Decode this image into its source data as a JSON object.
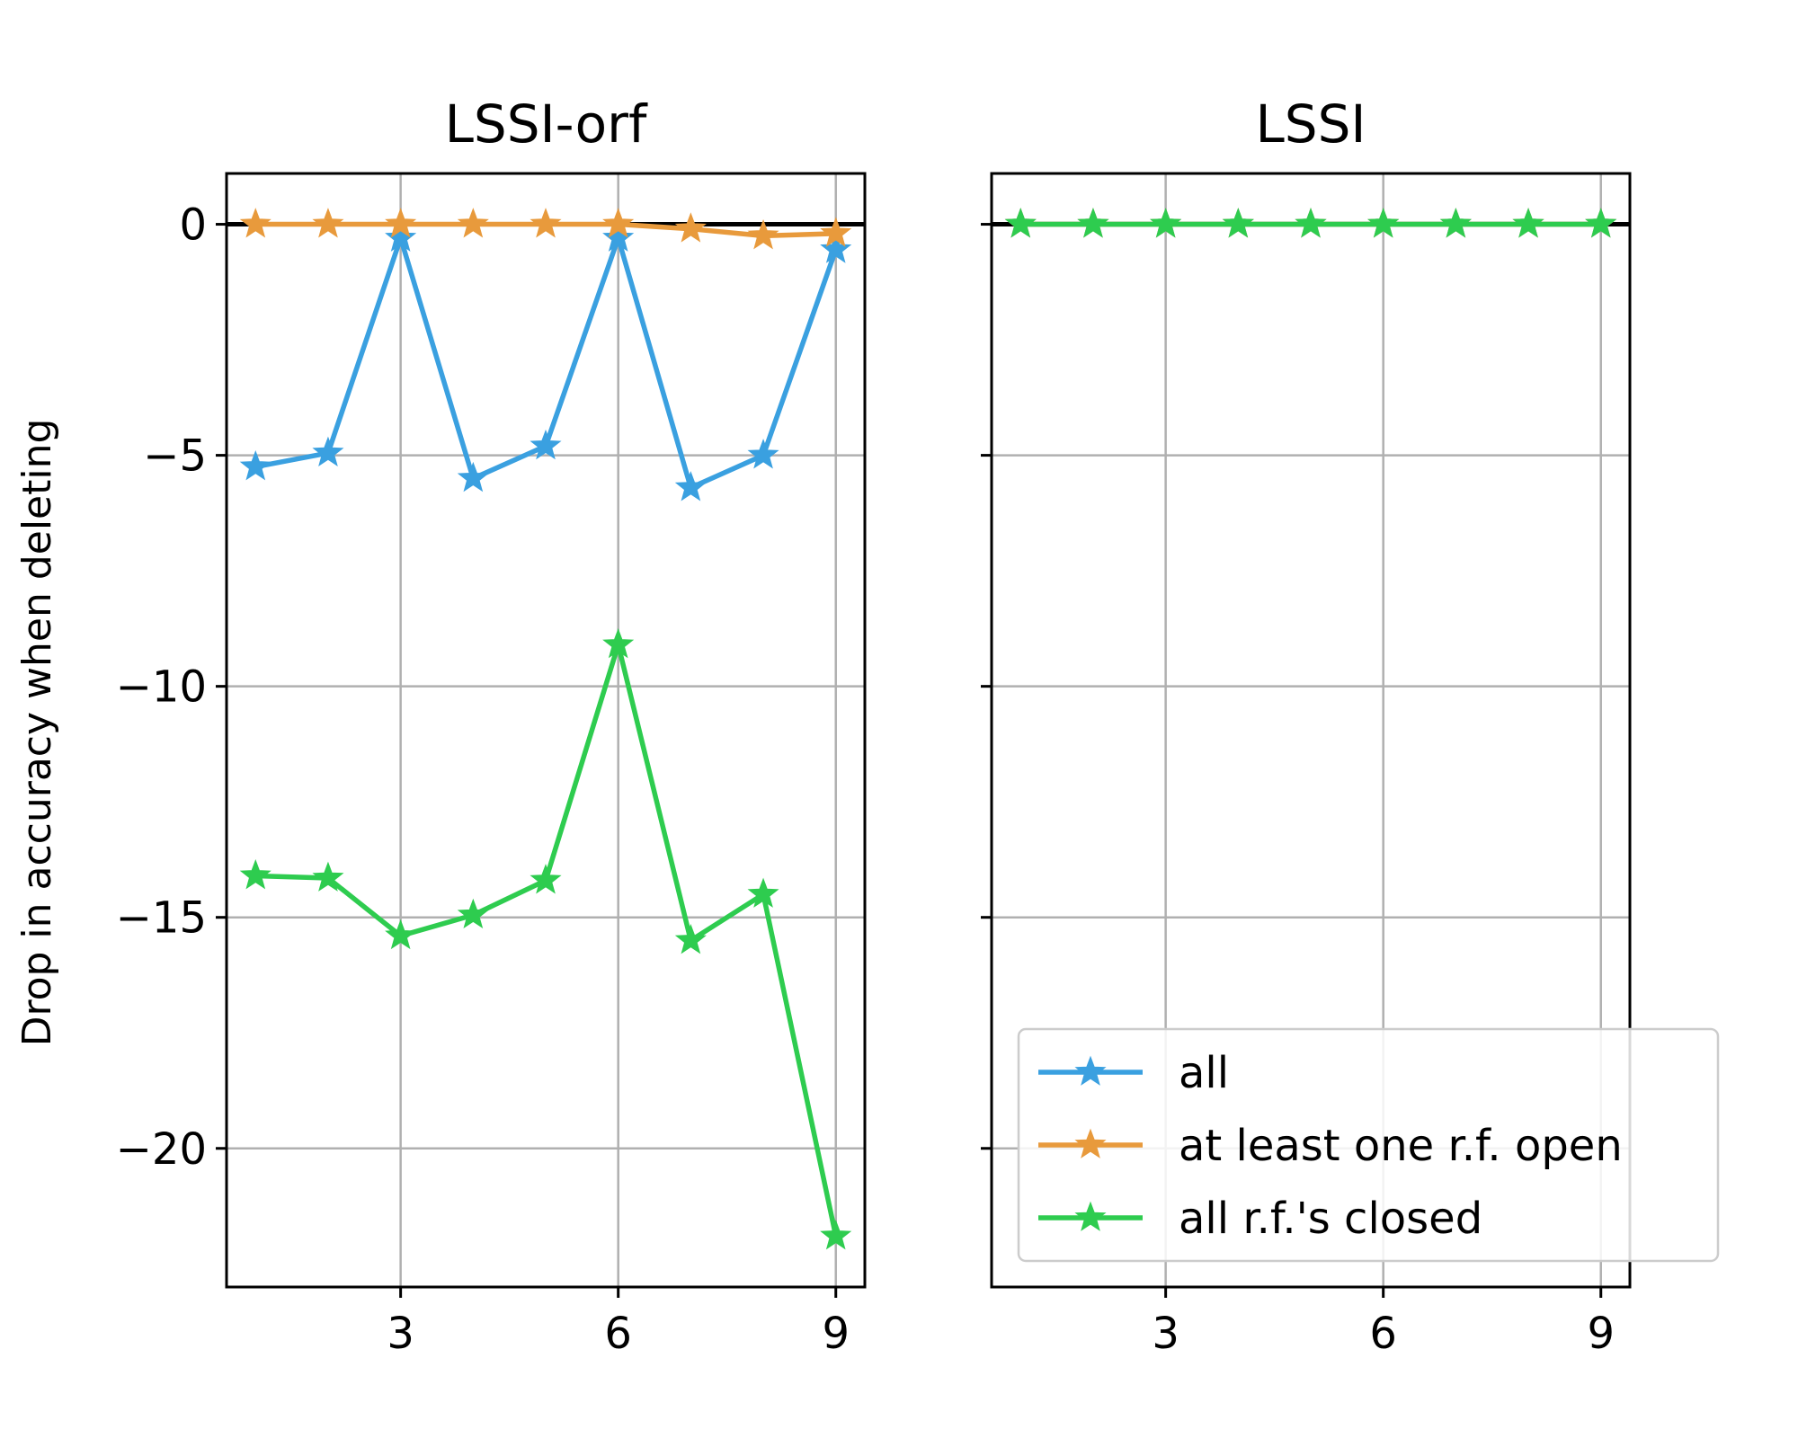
{
  "ylabel": "Drop in accuracy when deleting",
  "colors": {
    "all": "#3aa0e0",
    "open": "#e89a3c",
    "closed": "#2ecc4f"
  },
  "chart_data": [
    {
      "type": "line",
      "title": "LSSI-orf",
      "xlabel": "",
      "ylabel": "Drop in accuracy when deleting",
      "x": [
        1,
        2,
        3,
        4,
        5,
        6,
        7,
        8,
        9
      ],
      "xticks": [
        "3",
        "6",
        "9"
      ],
      "yticks": [
        "0",
        "−5",
        "−10",
        "−15",
        "−20"
      ],
      "xlim": [
        0.6,
        9.4
      ],
      "ylim": [
        -23.0,
        1.1
      ],
      "grid": true,
      "reference_line_y": 0,
      "series": [
        {
          "name": "all",
          "color": "#3aa0e0",
          "values": [
            -5.25,
            -4.95,
            -0.3,
            -5.5,
            -4.8,
            -0.3,
            -5.7,
            -5.0,
            -0.55
          ]
        },
        {
          "name": "at least one r.f. open",
          "color": "#e89a3c",
          "values": [
            0.0,
            0.0,
            0.0,
            0.0,
            0.0,
            0.0,
            -0.1,
            -0.25,
            -0.2
          ]
        },
        {
          "name": "all r.f.'s closed",
          "color": "#2ecc4f",
          "values": [
            -14.1,
            -14.15,
            -15.4,
            -14.95,
            -14.2,
            -9.1,
            -15.5,
            -14.5,
            -21.9
          ]
        }
      ]
    },
    {
      "type": "line",
      "title": "LSSI",
      "xlabel": "",
      "x": [
        1,
        2,
        3,
        4,
        5,
        6,
        7,
        8,
        9
      ],
      "xticks": [
        "3",
        "6",
        "9"
      ],
      "xlim": [
        0.6,
        9.4
      ],
      "ylim": [
        -23.0,
        1.1
      ],
      "grid": true,
      "reference_line_y": 0,
      "legend_position": "lower right",
      "series": [
        {
          "name": "all",
          "color": "#3aa0e0",
          "values": [
            0,
            0,
            0,
            0,
            0,
            0,
            0,
            0,
            0
          ]
        },
        {
          "name": "at least one r.f. open",
          "color": "#e89a3c",
          "values": [
            0,
            0,
            0,
            0,
            0,
            0,
            0,
            0,
            0
          ]
        },
        {
          "name": "all r.f.'s closed",
          "color": "#2ecc4f",
          "values": [
            0,
            0,
            0,
            0,
            0,
            0,
            0,
            0,
            0
          ]
        }
      ]
    }
  ]
}
